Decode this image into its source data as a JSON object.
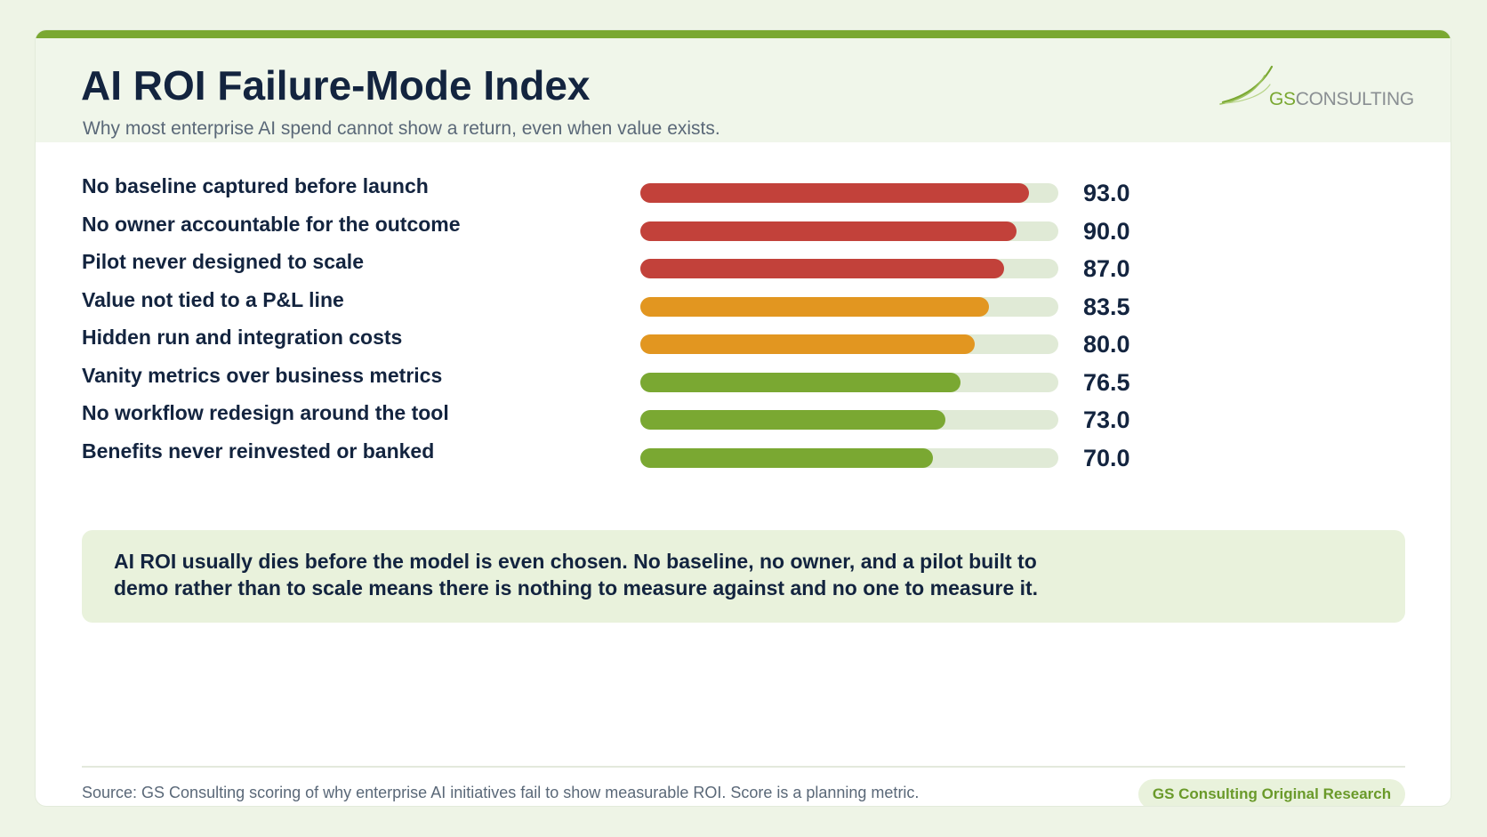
{
  "header": {
    "title": "AI ROI Failure-Mode Index",
    "subtitle": "Why most enterprise AI spend cannot show a return, even when value exists.",
    "logo": {
      "prefix": "GS",
      "suffix": "CONSULTING"
    }
  },
  "chart_data": {
    "type": "bar",
    "orientation": "horizontal",
    "title": "",
    "xlabel": "",
    "ylabel": "",
    "xlim": [
      0,
      100
    ],
    "grid": false,
    "categories": [
      "No baseline captured before launch",
      "No owner accountable for the outcome",
      "Pilot never designed to scale",
      "Value not tied to a P&L line",
      "Hidden run and integration costs",
      "Vanity metrics over business metrics",
      "No workflow redesign around the tool",
      "Benefits never reinvested or banked"
    ],
    "values": [
      93.0,
      90.0,
      87.0,
      83.5,
      80.0,
      76.5,
      73.0,
      70.0
    ],
    "value_labels": [
      "93.0",
      "90.0",
      "87.0",
      "83.5",
      "80.0",
      "76.5",
      "73.0",
      "70.0"
    ],
    "bar_colors": [
      "#c2413a",
      "#c2413a",
      "#c2413a",
      "#e29620",
      "#e29620",
      "#7aa832",
      "#7aa832",
      "#7aa832"
    ],
    "track_color": "#e0ead6"
  },
  "callout": {
    "text": "AI ROI usually dies before the model is even chosen. No baseline, no owner, and a pilot built to demo rather than to scale means there is nothing to measure against and no one to measure it."
  },
  "footer": {
    "source": "Source: GS Consulting scoring of why enterprise AI initiatives fail to show measurable ROI. Score is a planning metric.",
    "badge": "GS Consulting Original Research"
  },
  "colors": {
    "accent": "#7aa832",
    "title": "#13243f",
    "high": "#c2413a",
    "medium": "#e29620",
    "low": "#7aa832"
  }
}
